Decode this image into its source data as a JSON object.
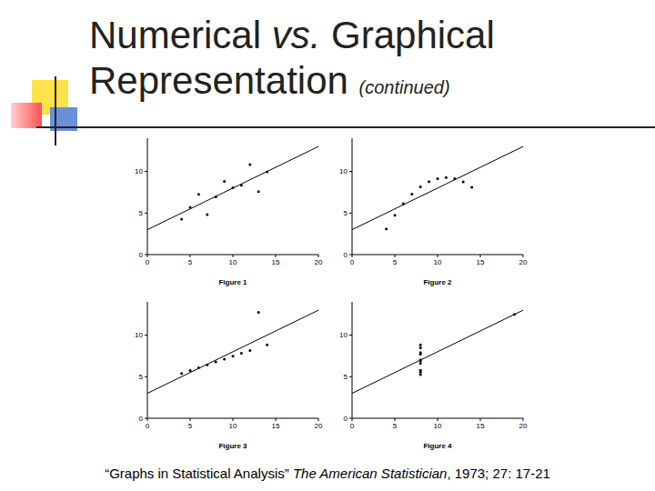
{
  "slide": {
    "title_line1": [
      "Numerical ",
      "vs.",
      " Graphical"
    ],
    "title_line2": "Representation",
    "title_note": "(continued)",
    "citation": [
      "“Graphs in Statistical Analysis” ",
      "The American Statistician",
      ", 1973; 27: 17-21"
    ]
  },
  "chart_data": [
    {
      "type": "scatter",
      "title": "Figure 1",
      "xlim": [
        0,
        20
      ],
      "xticks": [
        0,
        5,
        10,
        15,
        20
      ],
      "ylim": [
        0,
        14
      ],
      "yticks": [
        0,
        5,
        10
      ],
      "grid": false,
      "color": "#000000",
      "series": [
        {
          "type": "line",
          "line_style": "solid",
          "x": [
            0,
            20
          ],
          "values": [
            3,
            13
          ]
        },
        {
          "type": "scatter",
          "marker": "circle",
          "x": [
            10,
            8,
            13,
            9,
            11,
            14,
            6,
            4,
            12,
            7,
            5
          ],
          "values": [
            8.04,
            6.95,
            7.58,
            8.81,
            8.33,
            9.96,
            7.24,
            4.26,
            10.84,
            4.82,
            5.68
          ]
        }
      ]
    },
    {
      "type": "scatter",
      "title": "Figure 2",
      "xlim": [
        0,
        20
      ],
      "xticks": [
        0,
        5,
        10,
        15,
        20
      ],
      "ylim": [
        0,
        14
      ],
      "yticks": [
        0,
        5,
        10
      ],
      "grid": false,
      "color": "#000000",
      "series": [
        {
          "type": "line",
          "line_style": "solid",
          "x": [
            0,
            20
          ],
          "values": [
            3,
            13
          ]
        },
        {
          "type": "scatter",
          "marker": "circle",
          "x": [
            10,
            8,
            13,
            9,
            11,
            14,
            6,
            4,
            12,
            7,
            5
          ],
          "values": [
            9.14,
            8.14,
            8.74,
            8.77,
            9.26,
            8.1,
            6.13,
            3.1,
            9.13,
            7.26,
            4.74
          ]
        }
      ]
    },
    {
      "type": "scatter",
      "title": "Figure 3",
      "xlim": [
        0,
        20
      ],
      "xticks": [
        0,
        5,
        10,
        15,
        20
      ],
      "ylim": [
        0,
        14
      ],
      "yticks": [
        0,
        5,
        10
      ],
      "grid": false,
      "color": "#000000",
      "series": [
        {
          "type": "line",
          "line_style": "solid",
          "x": [
            0,
            20
          ],
          "values": [
            3,
            13
          ]
        },
        {
          "type": "scatter",
          "marker": "circle",
          "x": [
            10,
            8,
            13,
            9,
            11,
            14,
            6,
            4,
            12,
            7,
            5
          ],
          "values": [
            7.46,
            6.77,
            12.74,
            7.11,
            7.81,
            8.84,
            6.08,
            5.39,
            8.15,
            6.42,
            5.73
          ]
        }
      ]
    },
    {
      "type": "scatter",
      "title": "Figure 4",
      "xlim": [
        0,
        20
      ],
      "xticks": [
        0,
        5,
        10,
        15,
        20
      ],
      "ylim": [
        0,
        14
      ],
      "yticks": [
        0,
        5,
        10
      ],
      "grid": false,
      "color": "#000000",
      "series": [
        {
          "type": "line",
          "line_style": "solid",
          "x": [
            0,
            20
          ],
          "values": [
            3,
            13
          ]
        },
        {
          "type": "scatter",
          "marker": "circle",
          "x": [
            8,
            8,
            8,
            8,
            8,
            8,
            8,
            19,
            8,
            8,
            8
          ],
          "values": [
            6.58,
            5.76,
            7.71,
            8.84,
            8.47,
            7.04,
            5.25,
            12.5,
            5.56,
            7.91,
            6.89
          ]
        }
      ]
    }
  ]
}
